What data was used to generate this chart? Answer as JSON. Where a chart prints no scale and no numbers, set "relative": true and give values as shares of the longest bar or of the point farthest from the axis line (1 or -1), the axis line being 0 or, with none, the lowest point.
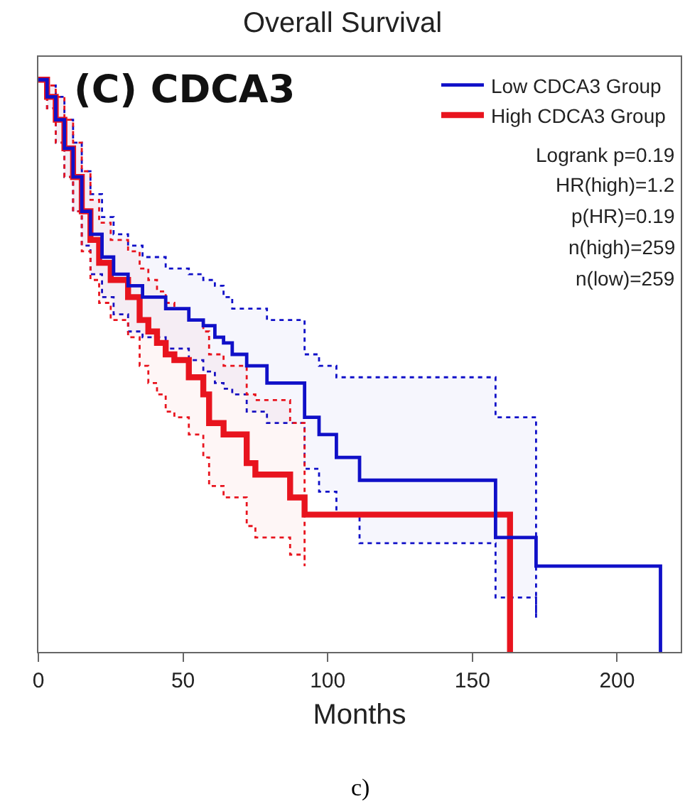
{
  "chart_data": {
    "type": "step",
    "title": "Overall Survival",
    "xlabel": "Months",
    "relative": true,
    "xlim": [
      0,
      222
    ],
    "xticks": [
      0,
      50,
      100,
      150,
      200
    ],
    "legend": "top right",
    "grid": false,
    "marker": "none",
    "line_style": "solid",
    "annotations": [
      "(C) CDCA3",
      "Logrank p=0.19",
      "HR(high)=1.2",
      "p(HR)=0.19",
      "n(high)=259",
      "n(low)=259",
      "c)"
    ],
    "series": [
      {
        "name": "Low CDCA3 Group",
        "color": "#1010c8",
        "x": [
          0,
          3,
          6,
          9,
          12,
          15,
          18,
          22,
          26,
          31,
          36,
          44,
          52,
          57,
          61,
          64,
          67,
          72,
          79,
          92,
          97,
          103,
          111,
          158,
          172,
          215
        ],
        "values": [
          1,
          0.97,
          0.93,
          0.88,
          0.83,
          0.77,
          0.73,
          0.69,
          0.66,
          0.64,
          0.62,
          0.6,
          0.58,
          0.57,
          0.55,
          0.54,
          0.52,
          0.5,
          0.47,
          0.41,
          0.38,
          0.34,
          0.3,
          0.2,
          0.15,
          0
        ],
        "upper": [
          1,
          0.99,
          0.97,
          0.93,
          0.89,
          0.84,
          0.8,
          0.76,
          0.73,
          0.71,
          0.69,
          0.67,
          0.66,
          0.65,
          0.64,
          0.62,
          0.6,
          0.6,
          0.58,
          0.52,
          0.5,
          0.48,
          0.48,
          0.41,
          0.38,
          null
        ],
        "lower": [
          1,
          0.95,
          0.89,
          0.83,
          0.77,
          0.71,
          0.66,
          0.62,
          0.59,
          0.56,
          0.55,
          0.53,
          0.51,
          0.49,
          0.47,
          0.46,
          0.45,
          0.42,
          0.4,
          0.32,
          0.28,
          0.24,
          0.19,
          0.095,
          0.06,
          null
        ]
      },
      {
        "name": "High CDCA3 Group",
        "color": "#e8141e",
        "x": [
          0,
          3,
          6,
          9,
          12,
          15,
          18,
          21,
          25,
          31,
          35,
          38,
          41,
          44,
          47,
          52,
          57,
          59,
          64,
          72,
          75,
          87,
          92,
          163
        ],
        "values": [
          1,
          0.97,
          0.93,
          0.88,
          0.83,
          0.77,
          0.72,
          0.68,
          0.65,
          0.62,
          0.58,
          0.56,
          0.54,
          0.52,
          0.51,
          0.48,
          0.45,
          0.4,
          0.38,
          0.33,
          0.31,
          0.27,
          0.24,
          0
        ],
        "upper": [
          1,
          0.99,
          0.97,
          0.93,
          0.89,
          0.84,
          0.79,
          0.75,
          0.72,
          0.7,
          0.67,
          0.65,
          0.63,
          0.61,
          0.6,
          0.58,
          0.56,
          0.52,
          0.5,
          0.45,
          0.44,
          0.4,
          0.39,
          null
        ],
        "lower": [
          1,
          0.95,
          0.89,
          0.83,
          0.77,
          0.7,
          0.65,
          0.61,
          0.58,
          0.55,
          0.5,
          0.47,
          0.45,
          0.42,
          0.41,
          0.38,
          0.34,
          0.29,
          0.27,
          0.22,
          0.2,
          0.17,
          0.15,
          null
        ]
      }
    ]
  }
}
